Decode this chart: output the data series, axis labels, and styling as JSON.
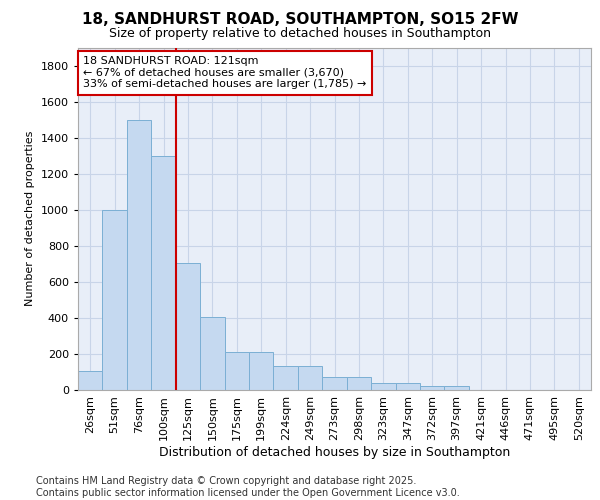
{
  "title_line1": "18, SANDHURST ROAD, SOUTHAMPTON, SO15 2FW",
  "title_line2": "Size of property relative to detached houses in Southampton",
  "xlabel": "Distribution of detached houses by size in Southampton",
  "ylabel": "Number of detached properties",
  "categories": [
    "26sqm",
    "51sqm",
    "76sqm",
    "100sqm",
    "125sqm",
    "150sqm",
    "175sqm",
    "199sqm",
    "224sqm",
    "249sqm",
    "273sqm",
    "298sqm",
    "323sqm",
    "347sqm",
    "372sqm",
    "397sqm",
    "421sqm",
    "446sqm",
    "471sqm",
    "495sqm",
    "520sqm"
  ],
  "values": [
    105,
    1000,
    1500,
    1300,
    705,
    405,
    210,
    210,
    135,
    135,
    70,
    70,
    40,
    40,
    20,
    20,
    0,
    0,
    0,
    0,
    0
  ],
  "bar_color": "#c5d9f0",
  "bar_edge_color": "#7bafd4",
  "grid_color": "#c8d4e8",
  "vline_color": "#cc0000",
  "annotation_text": "18 SANDHURST ROAD: 121sqm\n← 67% of detached houses are smaller (3,670)\n33% of semi-detached houses are larger (1,785) →",
  "annotation_box_color": "#cc0000",
  "footer_text": "Contains HM Land Registry data © Crown copyright and database right 2025.\nContains public sector information licensed under the Open Government Licence v3.0.",
  "ylim": [
    0,
    1900
  ],
  "yticks": [
    0,
    200,
    400,
    600,
    800,
    1000,
    1200,
    1400,
    1600,
    1800
  ],
  "bg_color": "#e8eef8",
  "fig_bg_color": "#ffffff",
  "title_fontsize": 11,
  "subtitle_fontsize": 9,
  "ylabel_fontsize": 8,
  "xlabel_fontsize": 9,
  "tick_fontsize": 8,
  "annot_fontsize": 8,
  "footer_fontsize": 7
}
